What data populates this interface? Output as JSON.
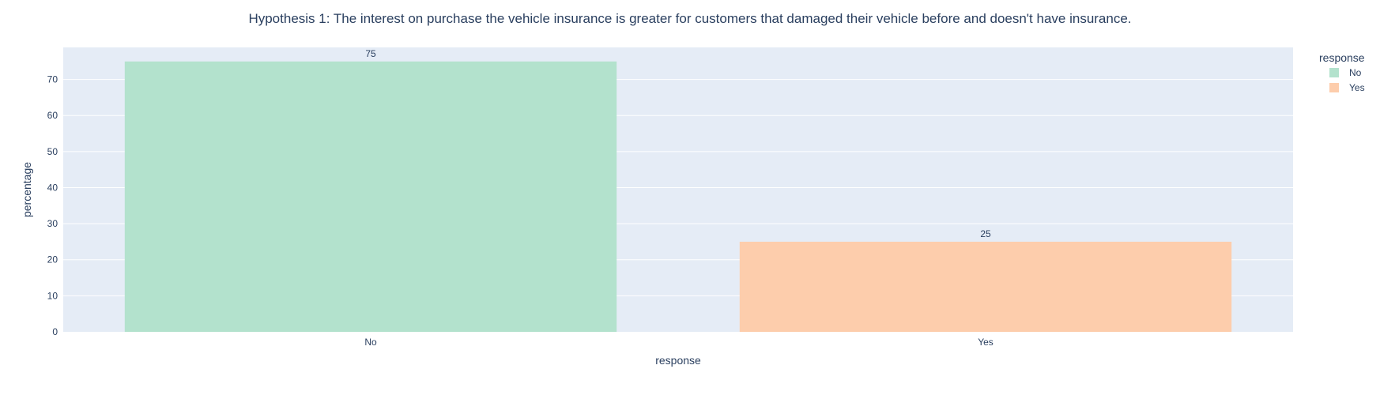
{
  "chart_data": {
    "type": "bar",
    "title": "Hypothesis 1: The interest on purchase the vehicle insurance is greater for customers that damaged their vehicle before and doesn't have insurance.",
    "xlabel": "response",
    "ylabel": "percentage",
    "categories": [
      "No",
      "Yes"
    ],
    "series": [
      {
        "name": "No",
        "values": [
          75,
          null
        ],
        "color": "#b3e2cd"
      },
      {
        "name": "Yes",
        "values": [
          null,
          25
        ],
        "color": "#fdcdac"
      }
    ],
    "data_labels": [
      "75",
      "25"
    ],
    "ylim": [
      0,
      78.9
    ],
    "yticks": [
      0,
      10,
      20,
      30,
      40,
      50,
      60,
      70
    ],
    "grid": true,
    "legend": {
      "title": "response",
      "position": "top-right",
      "items": [
        "No",
        "Yes"
      ]
    },
    "colors": {
      "plot_bg": "#e5ecf6",
      "grid": "#ffffff",
      "text": "#2a3f5f"
    }
  }
}
